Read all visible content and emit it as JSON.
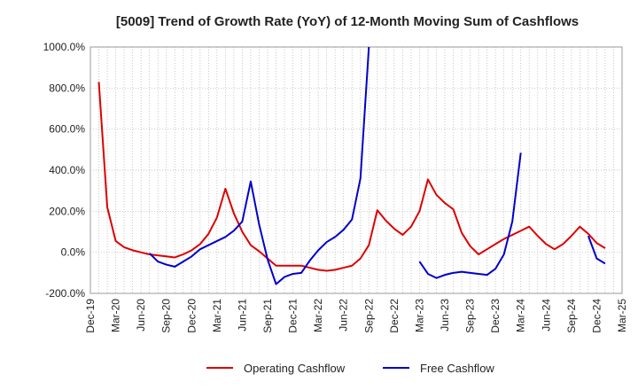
{
  "chart_data": {
    "type": "line",
    "title": "[5009]  Trend of Growth Rate (YoY) of 12-Month Moving Sum of Cashflows",
    "xlabel": "",
    "ylabel": "",
    "ylim": [
      -200,
      1000
    ],
    "y_ticks": [
      "-200.0%",
      "0.0%",
      "200.0%",
      "400.0%",
      "600.0%",
      "800.0%",
      "1000.0%"
    ],
    "y_tick_values": [
      -200,
      0,
      200,
      400,
      600,
      800,
      1000
    ],
    "x_ticks": [
      "Dec-19",
      "Mar-20",
      "Jun-20",
      "Sep-20",
      "Dec-20",
      "Mar-21",
      "Jun-21",
      "Sep-21",
      "Dec-21",
      "Mar-22",
      "Jun-22",
      "Sep-22",
      "Dec-22",
      "Mar-23",
      "Jun-23",
      "Sep-23",
      "Dec-23",
      "Mar-24",
      "Jun-24",
      "Sep-24",
      "Dec-24",
      "Mar-25"
    ],
    "x_months": [
      "2019-12",
      "2020-01",
      "2020-02",
      "2020-03",
      "2020-04",
      "2020-05",
      "2020-06",
      "2020-07",
      "2020-08",
      "2020-09",
      "2020-10",
      "2020-11",
      "2020-12",
      "2021-01",
      "2021-02",
      "2021-03",
      "2021-04",
      "2021-05",
      "2021-06",
      "2021-07",
      "2021-08",
      "2021-09",
      "2021-10",
      "2021-11",
      "2021-12",
      "2022-01",
      "2022-02",
      "2022-03",
      "2022-04",
      "2022-05",
      "2022-06",
      "2022-07",
      "2022-08",
      "2022-09",
      "2022-10",
      "2022-11",
      "2022-12",
      "2023-01",
      "2023-02",
      "2023-03",
      "2023-04",
      "2023-05",
      "2023-06",
      "2023-07",
      "2023-08",
      "2023-09",
      "2023-10",
      "2023-11",
      "2023-12",
      "2024-01",
      "2024-02",
      "2024-03",
      "2024-04",
      "2024-05",
      "2024-06",
      "2024-07",
      "2024-08",
      "2024-09",
      "2024-10",
      "2024-11",
      "2024-12",
      "2025-01",
      "2025-02",
      "2025-03"
    ],
    "grid": true,
    "legend_position": "bottom",
    "series": [
      {
        "name": "Operating Cashflow",
        "color": "#dd0000",
        "values": [
          null,
          830,
          220,
          55,
          25,
          10,
          0,
          -10,
          -15,
          -20,
          -25,
          -10,
          10,
          40,
          90,
          170,
          310,
          190,
          100,
          35,
          5,
          -30,
          -65,
          -65,
          -65,
          -65,
          -75,
          -85,
          -90,
          -85,
          -75,
          -65,
          -30,
          35,
          205,
          155,
          115,
          85,
          125,
          200,
          355,
          280,
          240,
          210,
          95,
          30,
          -10,
          15,
          40,
          65,
          85,
          105,
          125,
          80,
          40,
          15,
          40,
          80,
          125,
          90,
          45,
          20,
          null,
          null
        ]
      },
      {
        "name": "Free Cashflow",
        "color": "#0000cc",
        "values": [
          null,
          null,
          null,
          null,
          null,
          null,
          null,
          -5,
          -45,
          -60,
          -70,
          -45,
          -20,
          15,
          35,
          55,
          75,
          105,
          150,
          345,
          135,
          -35,
          -155,
          -120,
          -105,
          -100,
          -40,
          10,
          50,
          75,
          110,
          160,
          360,
          1000,
          null,
          null,
          null,
          null,
          null,
          -45,
          -105,
          -125,
          -110,
          -100,
          -95,
          -100,
          -105,
          -110,
          -80,
          -10,
          150,
          485,
          null,
          null,
          null,
          null,
          null,
          null,
          null,
          80,
          -30,
          -55,
          null,
          null
        ]
      }
    ]
  }
}
